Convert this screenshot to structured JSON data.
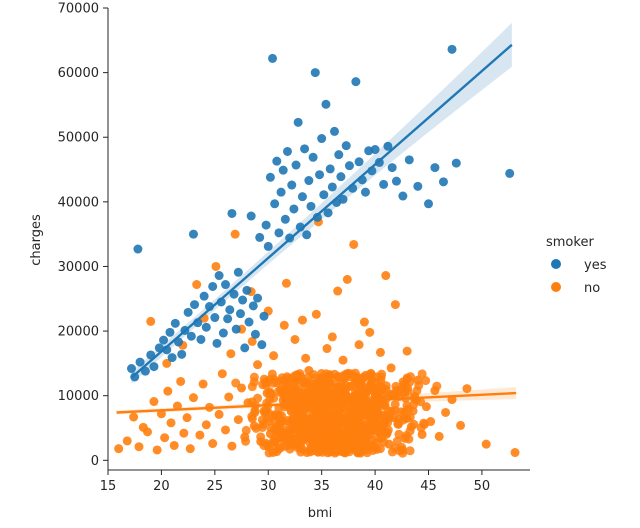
{
  "chart_data": {
    "type": "scatter",
    "xlabel": "bmi",
    "ylabel": "charges",
    "xlim": [
      15,
      54.5
    ],
    "ylim": [
      -1500,
      70000
    ],
    "xticks": [
      15,
      20,
      25,
      30,
      35,
      40,
      45,
      50
    ],
    "yticks": [
      0,
      10000,
      20000,
      30000,
      40000,
      50000,
      60000,
      70000
    ],
    "legend": {
      "title": "smoker",
      "position": "right"
    },
    "series": [
      {
        "name": "yes",
        "color": "#1f77b4",
        "regression": {
          "x0": 17.2,
          "y0": 12800,
          "x1": 52.8,
          "y1": 64300
        },
        "points": [
          [
            17.8,
            32700
          ],
          [
            17.2,
            14200
          ],
          [
            17.5,
            12900
          ],
          [
            18.0,
            15200
          ],
          [
            18.5,
            13800
          ],
          [
            19.0,
            16300
          ],
          [
            19.3,
            14500
          ],
          [
            19.8,
            17400
          ],
          [
            20.2,
            18600
          ],
          [
            20.5,
            17100
          ],
          [
            20.8,
            19800
          ],
          [
            21.0,
            15900
          ],
          [
            21.3,
            21200
          ],
          [
            21.6,
            18300
          ],
          [
            21.9,
            16400
          ],
          [
            22.2,
            20100
          ],
          [
            22.5,
            22900
          ],
          [
            22.8,
            19200
          ],
          [
            23.0,
            35000
          ],
          [
            23.1,
            24100
          ],
          [
            23.4,
            21300
          ],
          [
            23.7,
            18700
          ],
          [
            24.0,
            25400
          ],
          [
            24.2,
            20600
          ],
          [
            24.5,
            23800
          ],
          [
            24.8,
            26900
          ],
          [
            25.0,
            22100
          ],
          [
            25.2,
            18100
          ],
          [
            25.4,
            28600
          ],
          [
            25.6,
            24500
          ],
          [
            25.8,
            19700
          ],
          [
            26.0,
            27200
          ],
          [
            26.2,
            21900
          ],
          [
            26.4,
            23300
          ],
          [
            26.6,
            38200
          ],
          [
            26.8,
            25700
          ],
          [
            27.0,
            20300
          ],
          [
            27.2,
            29100
          ],
          [
            27.4,
            22700
          ],
          [
            27.6,
            24800
          ],
          [
            27.8,
            17400
          ],
          [
            28.0,
            26300
          ],
          [
            28.2,
            21400
          ],
          [
            28.4,
            37800
          ],
          [
            28.6,
            23900
          ],
          [
            28.8,
            19500
          ],
          [
            29.0,
            25100
          ],
          [
            29.2,
            34500
          ],
          [
            29.4,
            17900
          ],
          [
            29.6,
            22300
          ],
          [
            29.8,
            36400
          ],
          [
            30.0,
            33100
          ],
          [
            30.2,
            43800
          ],
          [
            30.4,
            62200
          ],
          [
            30.6,
            39700
          ],
          [
            30.8,
            46300
          ],
          [
            31.0,
            35200
          ],
          [
            31.2,
            41500
          ],
          [
            31.4,
            44900
          ],
          [
            31.6,
            37300
          ],
          [
            31.8,
            47800
          ],
          [
            32.0,
            34400
          ],
          [
            32.2,
            42600
          ],
          [
            32.4,
            38900
          ],
          [
            32.6,
            45700
          ],
          [
            32.8,
            52300
          ],
          [
            33.0,
            36100
          ],
          [
            33.2,
            40800
          ],
          [
            33.4,
            48200
          ],
          [
            33.6,
            34900
          ],
          [
            33.8,
            43300
          ],
          [
            34.0,
            39300
          ],
          [
            34.2,
            46900
          ],
          [
            34.4,
            60000
          ],
          [
            34.6,
            37600
          ],
          [
            34.8,
            44200
          ],
          [
            35.0,
            49800
          ],
          [
            35.2,
            41100
          ],
          [
            35.4,
            55100
          ],
          [
            35.6,
            38300
          ],
          [
            35.8,
            45100
          ],
          [
            36.0,
            42300
          ],
          [
            36.2,
            50900
          ],
          [
            36.4,
            39900
          ],
          [
            36.6,
            47300
          ],
          [
            36.8,
            43900
          ],
          [
            37.0,
            40400
          ],
          [
            37.3,
            48700
          ],
          [
            37.6,
            45600
          ],
          [
            37.9,
            42100
          ],
          [
            38.2,
            58600
          ],
          [
            38.5,
            46200
          ],
          [
            38.8,
            43400
          ],
          [
            39.1,
            41500
          ],
          [
            39.4,
            47900
          ],
          [
            39.7,
            44800
          ],
          [
            40.0,
            48100
          ],
          [
            40.4,
            46100
          ],
          [
            40.8,
            42700
          ],
          [
            41.2,
            48600
          ],
          [
            41.6,
            45300
          ],
          [
            42.0,
            43200
          ],
          [
            42.6,
            40900
          ],
          [
            43.2,
            46500
          ],
          [
            44.0,
            42400
          ],
          [
            45.0,
            39700
          ],
          [
            45.6,
            45300
          ],
          [
            46.4,
            43100
          ],
          [
            47.2,
            63600
          ],
          [
            47.6,
            46000
          ],
          [
            52.6,
            44400
          ]
        ]
      },
      {
        "name": "no",
        "color": "#ff7f0e",
        "regression": {
          "x0": 15.8,
          "y0": 7400,
          "x1": 53.2,
          "y1": 10400
        },
        "points": [
          [
            16.0,
            1800
          ],
          [
            16.8,
            3000
          ],
          [
            17.4,
            6700
          ],
          [
            17.9,
            2100
          ],
          [
            18.3,
            5100
          ],
          [
            18.7,
            4400
          ],
          [
            19.0,
            21500
          ],
          [
            19.3,
            9100
          ],
          [
            19.6,
            1600
          ],
          [
            20.0,
            7200
          ],
          [
            20.3,
            3500
          ],
          [
            20.6,
            10700
          ],
          [
            20.9,
            5800
          ],
          [
            21.2,
            2300
          ],
          [
            21.5,
            8400
          ],
          [
            21.8,
            12200
          ],
          [
            22.1,
            4200
          ],
          [
            22.4,
            6600
          ],
          [
            22.7,
            1800
          ],
          [
            23.0,
            9700
          ],
          [
            23.3,
            27200
          ],
          [
            23.6,
            3900
          ],
          [
            23.9,
            11800
          ],
          [
            24.2,
            5500
          ],
          [
            24.5,
            8200
          ],
          [
            24.8,
            2600
          ],
          [
            25.1,
            30000
          ],
          [
            25.4,
            7100
          ],
          [
            25.7,
            13400
          ],
          [
            26.0,
            4700
          ],
          [
            26.3,
            9800
          ],
          [
            26.6,
            2200
          ],
          [
            26.9,
            35000
          ],
          [
            27.2,
            6300
          ],
          [
            27.5,
            11200
          ],
          [
            27.8,
            3600
          ],
          [
            28.1,
            8900
          ],
          [
            28.4,
            26100
          ],
          [
            28.7,
            5300
          ],
          [
            29.0,
            14800
          ],
          [
            29.3,
            2900
          ],
          [
            29.6,
            7600
          ],
          [
            29.9,
            10400
          ],
          [
            30.2,
            4100
          ],
          [
            30.5,
            12600
          ],
          [
            30.8,
            6800
          ],
          [
            31.1,
            1900
          ],
          [
            31.4,
            9300
          ],
          [
            31.7,
            27400
          ],
          [
            32.0,
            5600
          ],
          [
            32.3,
            11700
          ],
          [
            32.6,
            3300
          ],
          [
            32.9,
            8100
          ],
          [
            33.2,
            21700
          ],
          [
            33.5,
            4500
          ],
          [
            33.8,
            13900
          ],
          [
            34.1,
            6900
          ],
          [
            34.4,
            2700
          ],
          [
            34.7,
            36900
          ],
          [
            35.0,
            9600
          ],
          [
            35.3,
            5000
          ],
          [
            35.6,
            12100
          ],
          [
            35.9,
            3800
          ],
          [
            36.2,
            7800
          ],
          [
            36.5,
            26200
          ],
          [
            36.8,
            10900
          ],
          [
            37.1,
            4300
          ],
          [
            37.4,
            28000
          ],
          [
            37.7,
            8500
          ],
          [
            38.0,
            33400
          ],
          [
            38.3,
            6100
          ],
          [
            38.6,
            11400
          ],
          [
            38.9,
            3100
          ],
          [
            39.2,
            9000
          ],
          [
            39.5,
            19800
          ],
          [
            39.8,
            5900
          ],
          [
            40.1,
            12900
          ],
          [
            40.4,
            4600
          ],
          [
            40.7,
            8700
          ],
          [
            41.0,
            28600
          ],
          [
            41.3,
            2500
          ],
          [
            41.6,
            10100
          ],
          [
            41.9,
            24100
          ],
          [
            42.2,
            6400
          ],
          [
            42.5,
            11000
          ],
          [
            42.8,
            3400
          ],
          [
            43.1,
            7900
          ],
          [
            43.4,
            5200
          ],
          [
            43.7,
            9900
          ],
          [
            44.0,
            12400
          ],
          [
            44.4,
            4000
          ],
          [
            44.8,
            8300
          ],
          [
            45.2,
            6000
          ],
          [
            45.6,
            10800
          ],
          [
            46.0,
            3700
          ],
          [
            46.6,
            7400
          ],
          [
            47.2,
            9400
          ],
          [
            48.0,
            5400
          ],
          [
            48.6,
            11100
          ],
          [
            50.4,
            2500
          ],
          [
            53.1,
            1200
          ],
          [
            20.5,
            15000
          ],
          [
            22.0,
            17800
          ],
          [
            24.0,
            22000
          ],
          [
            26.5,
            16500
          ],
          [
            27.5,
            20300
          ],
          [
            28.5,
            18400
          ],
          [
            30.0,
            23100
          ],
          [
            30.5,
            16200
          ],
          [
            31.5,
            20900
          ],
          [
            32.5,
            18700
          ],
          [
            33.5,
            15800
          ],
          [
            34.5,
            22600
          ],
          [
            35.5,
            17300
          ],
          [
            36.0,
            19100
          ],
          [
            37.0,
            15500
          ],
          [
            38.5,
            17900
          ],
          [
            39.0,
            21400
          ],
          [
            40.5,
            16700
          ],
          [
            41.5,
            14300
          ],
          [
            43.0,
            16900
          ]
        ],
        "dense_cloud": {
          "x_range": [
            18.5,
            50
          ],
          "y_range": [
            1100,
            13500
          ],
          "count": 850
        }
      }
    ]
  }
}
